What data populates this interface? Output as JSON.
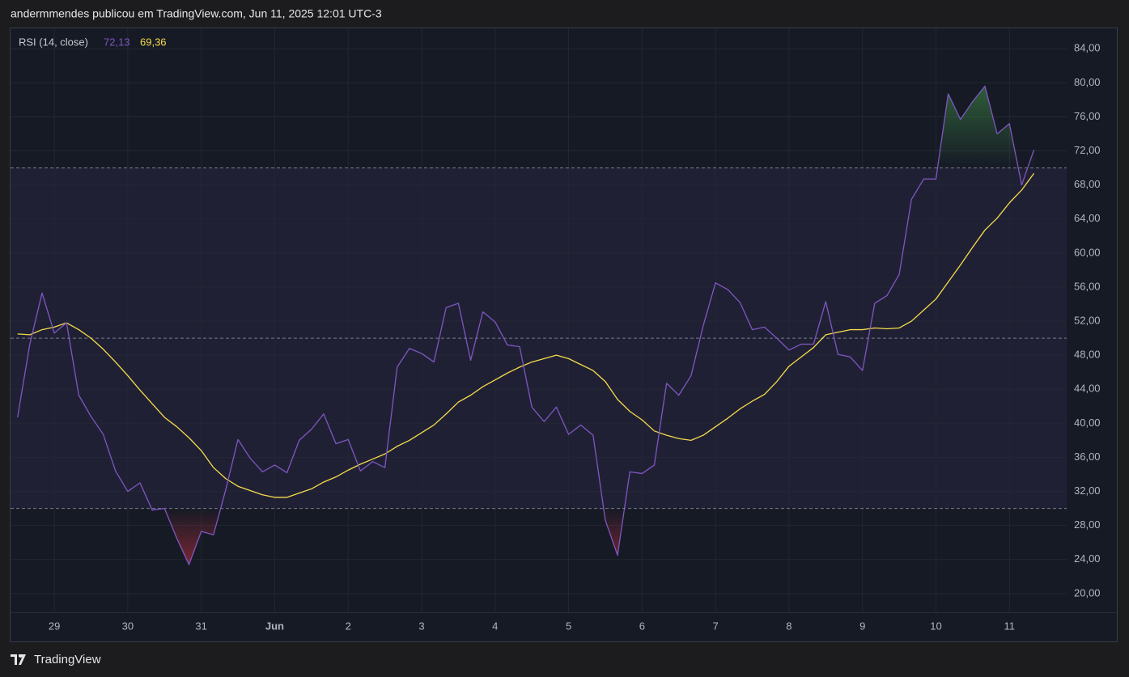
{
  "header": {
    "attribution": "andermmendes publicou em TradingView.com, Jun 11, 2025 12:01 UTC-3"
  },
  "footer": {
    "brand": "TradingView"
  },
  "chart_data": {
    "type": "line",
    "title": "RSI (14, close)",
    "x": [
      -12,
      -8,
      -4,
      0,
      4,
      8,
      12,
      16,
      20,
      24,
      28,
      32,
      36,
      40,
      44,
      48,
      52,
      56,
      60,
      64,
      68,
      72,
      76,
      80,
      84,
      88,
      92,
      96,
      100,
      104,
      108,
      112,
      116,
      120,
      124,
      128,
      132,
      136,
      140,
      144,
      148,
      152,
      156,
      160,
      164,
      168,
      172,
      176,
      180,
      184,
      188,
      192,
      196,
      200,
      204,
      208,
      212,
      216,
      220,
      224,
      228,
      232,
      236,
      240,
      244,
      248,
      252,
      256,
      260,
      264,
      268,
      272,
      276,
      280,
      284,
      288,
      292,
      296,
      300,
      304,
      308,
      312,
      316,
      320
    ],
    "series": [
      {
        "color": "#7e57c2",
        "last_value_label": "72,13",
        "values": [
          40.7,
          49.3,
          55.3,
          50.6,
          51.8,
          43.3,
          40.8,
          38.7,
          34.4,
          32.0,
          33.0,
          29.8,
          30.0,
          26.5,
          23.4,
          27.3,
          26.9,
          32.2,
          38.1,
          35.9,
          34.3,
          35.1,
          34.2,
          38.0,
          39.3,
          41.1,
          37.6,
          38.1,
          34.4,
          35.5,
          34.8,
          46.6,
          48.8,
          48.2,
          47.2,
          53.6,
          54.1,
          47.4,
          53.1,
          51.9,
          49.2,
          49.0,
          41.9,
          40.2,
          41.9,
          38.7,
          39.8,
          38.6,
          28.6,
          24.5,
          34.3,
          34.1,
          35.1,
          44.7,
          43.3,
          45.6,
          51.5,
          56.5,
          55.7,
          54.2,
          51.0,
          51.3,
          50.0,
          48.6,
          49.3,
          49.3,
          54.3,
          48.1,
          47.8,
          46.2,
          54.1,
          55.0,
          57.5,
          66.3,
          68.7,
          68.7,
          78.7,
          75.7,
          77.8,
          79.6,
          74.0,
          75.2,
          68.0,
          72.13
        ]
      },
      {
        "color": "#f5dc4a",
        "last_value_label": "69,36",
        "values": [
          50.5,
          50.4,
          51.0,
          51.3,
          51.8,
          51.0,
          50.0,
          48.7,
          47.2,
          45.6,
          43.9,
          42.3,
          40.7,
          39.6,
          38.3,
          36.8,
          34.8,
          33.5,
          32.6,
          32.1,
          31.6,
          31.3,
          31.3,
          31.8,
          32.3,
          33.1,
          33.7,
          34.5,
          35.2,
          35.8,
          36.4,
          37.3,
          38.0,
          38.9,
          39.8,
          41.1,
          42.5,
          43.3,
          44.3,
          45.1,
          45.9,
          46.6,
          47.2,
          47.6,
          48.0,
          47.6,
          46.9,
          46.2,
          44.9,
          42.8,
          41.4,
          40.4,
          39.1,
          38.6,
          38.2,
          38.0,
          38.6,
          39.6,
          40.6,
          41.7,
          42.6,
          43.4,
          44.9,
          46.7,
          47.8,
          48.9,
          50.4,
          50.7,
          51.0,
          51.0,
          51.2,
          51.1,
          51.2,
          52.0,
          53.3,
          54.6,
          56.6,
          58.6,
          60.7,
          62.7,
          64.1,
          65.9,
          67.4,
          69.36
        ]
      }
    ],
    "xlim": [
      -14.3,
      330.7
    ],
    "xticks": [
      {
        "value": 0,
        "label": "29"
      },
      {
        "value": 24,
        "label": "30"
      },
      {
        "value": 48,
        "label": "31"
      },
      {
        "value": 72,
        "label": "Jun"
      },
      {
        "value": 96,
        "label": "2"
      },
      {
        "value": 120,
        "label": "3"
      },
      {
        "value": 144,
        "label": "4"
      },
      {
        "value": 168,
        "label": "5"
      },
      {
        "value": 192,
        "label": "6"
      },
      {
        "value": 216,
        "label": "7"
      },
      {
        "value": 240,
        "label": "8"
      },
      {
        "value": 264,
        "label": "9"
      },
      {
        "value": 288,
        "label": "10"
      },
      {
        "value": 312,
        "label": "11"
      }
    ],
    "ylim": [
      17.8,
      86.4
    ],
    "yticks": [
      {
        "value": 20,
        "label": "20,00"
      },
      {
        "value": 24,
        "label": "24,00"
      },
      {
        "value": 28,
        "label": "28,00"
      },
      {
        "value": 32,
        "label": "32,00"
      },
      {
        "value": 36,
        "label": "36,00"
      },
      {
        "value": 40,
        "label": "40,00"
      },
      {
        "value": 44,
        "label": "44,00"
      },
      {
        "value": 48,
        "label": "48,00"
      },
      {
        "value": 52,
        "label": "52,00"
      },
      {
        "value": 56,
        "label": "56,00"
      },
      {
        "value": 60,
        "label": "60,00"
      },
      {
        "value": 64,
        "label": "64,00"
      },
      {
        "value": 68,
        "label": "68,00"
      },
      {
        "value": 72,
        "label": "72,00"
      },
      {
        "value": 76,
        "label": "76,00"
      },
      {
        "value": 80,
        "label": "80,00"
      },
      {
        "value": 84,
        "label": "84,00"
      }
    ],
    "bands": [
      30,
      50,
      70
    ],
    "band_fill_color": "rgba(126,87,194,0.10)",
    "overbought_color": "#4caf50",
    "oversold_color": "#f23645",
    "grid": true
  }
}
